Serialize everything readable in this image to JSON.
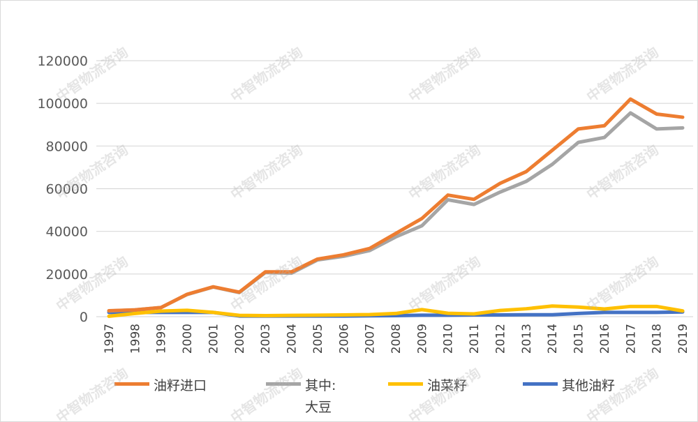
{
  "chart_data": {
    "type": "line",
    "title": "",
    "xlabel": "",
    "ylabel": "",
    "ylim": [
      0,
      120000
    ],
    "yticks": [
      "0",
      "20000",
      "40000",
      "60000",
      "80000",
      "100000",
      "120000"
    ],
    "categories": [
      "1997",
      "1998",
      "1999",
      "2000",
      "2001",
      "2002",
      "2003",
      "2004",
      "2005",
      "2006",
      "2007",
      "2008",
      "2009",
      "2010",
      "2011",
      "2012",
      "2013",
      "2014",
      "2015",
      "2016",
      "2017",
      "2018",
      "2019"
    ],
    "grid": true,
    "legend": "bottom",
    "series": [
      {
        "name": "油籽进口",
        "color": "#ED7D31",
        "values": [
          2800,
          3200,
          4300,
          10500,
          14000,
          11500,
          21000,
          21000,
          27000,
          29000,
          32000,
          39000,
          46000,
          57000,
          55000,
          62500,
          68000,
          78000,
          88000,
          89500,
          102000,
          95000,
          93500
        ]
      },
      {
        "name": "其中:\n大豆",
        "name_lines": [
          "其中:",
          "大豆"
        ],
        "color": "#A5A5A5",
        "values": [
          2700,
          3200,
          4300,
          10400,
          13900,
          11300,
          20700,
          20400,
          26600,
          28300,
          31000,
          37400,
          42600,
          54800,
          52600,
          58400,
          63400,
          71400,
          81700,
          84000,
          95500,
          88000,
          88500
        ]
      },
      {
        "name": "油菜籽",
        "color": "#FFC000",
        "values": [
          200,
          1500,
          2600,
          3000,
          2000,
          600,
          500,
          600,
          700,
          800,
          1000,
          1500,
          3300,
          1600,
          1300,
          2900,
          3700,
          5000,
          4500,
          3600,
          4800,
          4800,
          2700
        ]
      },
      {
        "name": "其他油籽",
        "color": "#4472C4",
        "values": [
          2000,
          2000,
          2000,
          2000,
          2000,
          300,
          300,
          300,
          300,
          300,
          400,
          500,
          700,
          700,
          800,
          800,
          900,
          900,
          1500,
          2000,
          2000,
          2000,
          2200
        ]
      }
    ]
  },
  "watermark": "中智物流咨询"
}
